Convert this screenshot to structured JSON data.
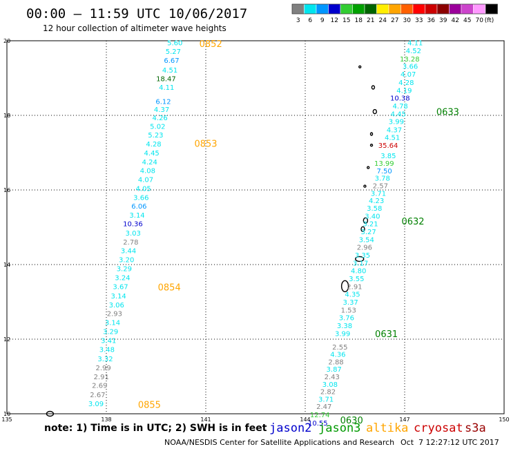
{
  "chart_data": {
    "type": "scatter",
    "title": "00:00 – 11:59 UTC 10/06/2017",
    "subtitle": "12 hour collection of altimeter wave heights",
    "xlim": [
      135,
      150
    ],
    "ylim": [
      10,
      20
    ],
    "x_ticks": [
      "135",
      "138",
      "141",
      "144",
      "147",
      "150"
    ],
    "y_ticks": [
      "10",
      "12",
      "14",
      "16",
      "18",
      "20"
    ],
    "grid": "dotted",
    "legend": {
      "unit": "(ft)",
      "bins": [
        {
          "label": "3",
          "color": "#808080"
        },
        {
          "label": "6",
          "color": "#00e5ee"
        },
        {
          "label": "9",
          "color": "#0096ff"
        },
        {
          "label": "12",
          "color": "#0000cd"
        },
        {
          "label": "15",
          "color": "#32cd32"
        },
        {
          "label": "18",
          "color": "#00a000"
        },
        {
          "label": "21",
          "color": "#006400"
        },
        {
          "label": "24",
          "color": "#ffee00"
        },
        {
          "label": "27",
          "color": "#ffa500"
        },
        {
          "label": "30",
          "color": "#ff6000"
        },
        {
          "label": "33",
          "color": "#ff0000"
        },
        {
          "label": "36",
          "color": "#cc0000"
        },
        {
          "label": "39",
          "color": "#8b0000"
        },
        {
          "label": "42",
          "color": "#9b009b"
        },
        {
          "label": "45",
          "color": "#cc44cc"
        },
        {
          "label": "70",
          "color": "#ff99ff"
        },
        {
          "label": "",
          "color": "#000000"
        }
      ]
    },
    "series": [
      {
        "name": "west pass",
        "points": [
          {
            "x": 140.3,
            "y": 19.95,
            "label": "5.60"
          },
          {
            "x": 140.25,
            "y": 19.72,
            "label": "5.27"
          },
          {
            "x": 140.2,
            "y": 19.48,
            "label": "6.67"
          },
          {
            "x": 140.15,
            "y": 19.22,
            "label": "4.51"
          },
          {
            "x": 140.1,
            "y": 18.99,
            "label": "18.47"
          },
          {
            "x": 140.05,
            "y": 18.76,
            "label": "4.11"
          },
          {
            "x": 139.95,
            "y": 18.38,
            "label": "6.12"
          },
          {
            "x": 139.9,
            "y": 18.17,
            "label": "4.37"
          },
          {
            "x": 139.85,
            "y": 17.94,
            "label": "4.26"
          },
          {
            "x": 139.78,
            "y": 17.71,
            "label": "5.02"
          },
          {
            "x": 139.72,
            "y": 17.48,
            "label": "5.23"
          },
          {
            "x": 139.66,
            "y": 17.24,
            "label": "4.28"
          },
          {
            "x": 139.6,
            "y": 17.0,
            "label": "4.45"
          },
          {
            "x": 139.54,
            "y": 16.76,
            "label": "4.24"
          },
          {
            "x": 139.48,
            "y": 16.53,
            "label": "4.08"
          },
          {
            "x": 139.42,
            "y": 16.29,
            "label": "4.07"
          },
          {
            "x": 139.35,
            "y": 16.05,
            "label": "4.05"
          },
          {
            "x": 139.28,
            "y": 15.81,
            "label": "3.66"
          },
          {
            "x": 139.22,
            "y": 15.57,
            "label": "6.06"
          },
          {
            "x": 139.16,
            "y": 15.33,
            "label": "3.14"
          },
          {
            "x": 139.1,
            "y": 15.1,
            "label": "10.36"
          },
          {
            "x": 139.04,
            "y": 14.85,
            "label": "3.03"
          },
          {
            "x": 138.97,
            "y": 14.61,
            "label": "2.78"
          },
          {
            "x": 138.9,
            "y": 14.38,
            "label": "3.44"
          },
          {
            "x": 138.84,
            "y": 14.14,
            "label": "3.20"
          },
          {
            "x": 138.77,
            "y": 13.9,
            "label": "3.29"
          },
          {
            "x": 138.72,
            "y": 13.66,
            "label": "3.24"
          },
          {
            "x": 138.66,
            "y": 13.42,
            "label": "3.67"
          },
          {
            "x": 138.6,
            "y": 13.17,
            "label": "3.14"
          },
          {
            "x": 138.54,
            "y": 12.93,
            "label": "3.06"
          },
          {
            "x": 138.48,
            "y": 12.69,
            "label": "2.93"
          },
          {
            "x": 138.42,
            "y": 12.45,
            "label": "3.14"
          },
          {
            "x": 138.36,
            "y": 12.21,
            "label": "3.29"
          },
          {
            "x": 138.3,
            "y": 11.97,
            "label": "3.41"
          },
          {
            "x": 138.25,
            "y": 11.73,
            "label": "3.48"
          },
          {
            "x": 138.2,
            "y": 11.48,
            "label": "3.32"
          },
          {
            "x": 138.14,
            "y": 11.24,
            "label": "2.99"
          },
          {
            "x": 138.08,
            "y": 11.0,
            "label": "2.91"
          },
          {
            "x": 138.03,
            "y": 10.77,
            "label": "2.69"
          },
          {
            "x": 137.97,
            "y": 10.52,
            "label": "2.67"
          },
          {
            "x": 137.92,
            "y": 10.28,
            "label": "3.09"
          }
        ]
      },
      {
        "name": "east pass",
        "points": [
          {
            "x": 147.55,
            "y": 19.95,
            "label": "4.11"
          },
          {
            "x": 147.5,
            "y": 19.74,
            "label": "4.52"
          },
          {
            "x": 147.45,
            "y": 19.52,
            "label": "13.28"
          },
          {
            "x": 147.4,
            "y": 19.32,
            "label": "3.66"
          },
          {
            "x": 147.34,
            "y": 19.11,
            "label": "4.07"
          },
          {
            "x": 147.28,
            "y": 18.89,
            "label": "4.28"
          },
          {
            "x": 147.22,
            "y": 18.68,
            "label": "4.19"
          },
          {
            "x": 147.16,
            "y": 18.47,
            "label": "10.38"
          },
          {
            "x": 147.1,
            "y": 18.26,
            "label": "4.78"
          },
          {
            "x": 147.04,
            "y": 18.05,
            "label": "4.45"
          },
          {
            "x": 146.98,
            "y": 17.84,
            "label": "3.99"
          },
          {
            "x": 146.92,
            "y": 17.62,
            "label": "4.37"
          },
          {
            "x": 146.86,
            "y": 17.42,
            "label": "4.51"
          },
          {
            "x": 146.8,
            "y": 17.2,
            "label": "35.64"
          },
          {
            "x": 146.74,
            "y": 16.93,
            "label": "3.85"
          },
          {
            "x": 146.68,
            "y": 16.72,
            "label": "13.99"
          },
          {
            "x": 146.62,
            "y": 16.52,
            "label": "7.50"
          },
          {
            "x": 146.56,
            "y": 16.32,
            "label": "3.78"
          },
          {
            "x": 146.5,
            "y": 16.12,
            "label": "2.57"
          },
          {
            "x": 146.44,
            "y": 15.92,
            "label": "3.71"
          },
          {
            "x": 146.38,
            "y": 15.72,
            "label": "4.23"
          },
          {
            "x": 146.32,
            "y": 15.52,
            "label": "3.58"
          },
          {
            "x": 146.26,
            "y": 15.31,
            "label": "3.40"
          },
          {
            "x": 146.2,
            "y": 15.1,
            "label": "3.21"
          },
          {
            "x": 146.14,
            "y": 14.89,
            "label": "3.27"
          },
          {
            "x": 146.08,
            "y": 14.68,
            "label": "3.54"
          },
          {
            "x": 146.02,
            "y": 14.47,
            "label": "2.96"
          },
          {
            "x": 145.96,
            "y": 14.26,
            "label": "3.35"
          },
          {
            "x": 145.9,
            "y": 14.05,
            "label": "3.17"
          },
          {
            "x": 145.84,
            "y": 13.84,
            "label": "4.80"
          },
          {
            "x": 145.78,
            "y": 13.63,
            "label": "3.55"
          },
          {
            "x": 145.72,
            "y": 13.42,
            "label": "2.91"
          },
          {
            "x": 145.66,
            "y": 13.21,
            "label": "4.35"
          },
          {
            "x": 145.6,
            "y": 13.0,
            "label": "3.37"
          },
          {
            "x": 145.54,
            "y": 12.79,
            "label": "1.53"
          },
          {
            "x": 145.48,
            "y": 12.58,
            "label": "3.76"
          },
          {
            "x": 145.42,
            "y": 12.37,
            "label": "3.38"
          },
          {
            "x": 145.36,
            "y": 12.16,
            "label": "3.99"
          },
          {
            "x": 145.28,
            "y": 11.8,
            "label": "2.55"
          },
          {
            "x": 145.22,
            "y": 11.6,
            "label": "4.36"
          },
          {
            "x": 145.16,
            "y": 11.4,
            "label": "2.88"
          },
          {
            "x": 145.1,
            "y": 11.2,
            "label": "3.87"
          },
          {
            "x": 145.04,
            "y": 11.0,
            "label": "2.43"
          },
          {
            "x": 144.98,
            "y": 10.8,
            "label": "3.08"
          },
          {
            "x": 144.92,
            "y": 10.6,
            "label": "2.82"
          },
          {
            "x": 144.86,
            "y": 10.4,
            "label": "3.71"
          },
          {
            "x": 144.8,
            "y": 10.2,
            "label": "2.47"
          },
          {
            "x": 144.74,
            "y": 9.98,
            "label": "12.74"
          },
          {
            "x": 144.68,
            "y": 9.76,
            "label": "10.55"
          }
        ]
      }
    ],
    "time_labels": [
      {
        "x": 141.15,
        "y": 19.93,
        "label": "0852",
        "color": "#ffa500"
      },
      {
        "x": 141.0,
        "y": 17.25,
        "label": "0853",
        "color": "#ffa500"
      },
      {
        "x": 139.9,
        "y": 13.4,
        "label": "0854",
        "color": "#ffa500"
      },
      {
        "x": 139.3,
        "y": 10.25,
        "label": "0855",
        "color": "#ffa500"
      },
      {
        "x": 148.3,
        "y": 18.1,
        "label": "0633",
        "color": "#008000"
      },
      {
        "x": 147.25,
        "y": 15.17,
        "label": "0632",
        "color": "#008000"
      },
      {
        "x": 146.45,
        "y": 12.15,
        "label": "0631",
        "color": "#008000"
      },
      {
        "x": 145.4,
        "y": 9.83,
        "label": "0630",
        "color": "#008000"
      }
    ],
    "islands": [
      {
        "x": 145.65,
        "y": 19.3,
        "w": 3,
        "h": 3
      },
      {
        "x": 146.05,
        "y": 18.75,
        "w": 4,
        "h": 5
      },
      {
        "x": 146.1,
        "y": 18.1,
        "w": 5,
        "h": 6
      },
      {
        "x": 146.0,
        "y": 17.5,
        "w": 3,
        "h": 4
      },
      {
        "x": 146.0,
        "y": 17.2,
        "w": 3,
        "h": 3
      },
      {
        "x": 145.9,
        "y": 16.6,
        "w": 3,
        "h": 3
      },
      {
        "x": 145.8,
        "y": 16.1,
        "w": 3,
        "h": 3
      },
      {
        "x": 145.82,
        "y": 15.18,
        "w": 6,
        "h": 8
      },
      {
        "x": 145.74,
        "y": 14.95,
        "w": 5,
        "h": 7
      },
      {
        "x": 145.64,
        "y": 14.15,
        "w": 12,
        "h": 7
      },
      {
        "x": 145.2,
        "y": 13.42,
        "w": 10,
        "h": 16
      },
      {
        "x": 136.3,
        "y": 10.0,
        "w": 10,
        "h": 7
      }
    ]
  },
  "notes": {
    "line": "note: 1) Time is in UTC; 2) SWH is in feet"
  },
  "satellites": [
    {
      "name": "jason2",
      "color": "#0000cc"
    },
    {
      "name": "jason3",
      "color": "#009900"
    },
    {
      "name": "altika",
      "color": "#ffa500"
    },
    {
      "name": "cryosat",
      "color": "#cc0000"
    },
    {
      "name": "s3a",
      "color": "#990000"
    }
  ],
  "footer": {
    "credit": "NOAA/NESDIS Center for Satellite Applications and Research",
    "timestamp": "Oct  7 12:27:12 UTC 2017"
  }
}
